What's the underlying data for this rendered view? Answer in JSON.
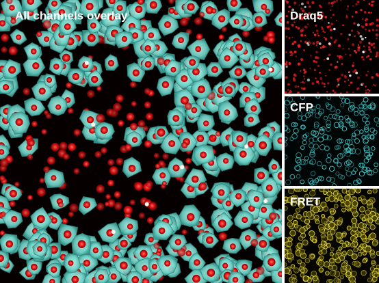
{
  "panels": [
    {
      "label": "All channels overlay"
    },
    {
      "label": "Draq5"
    },
    {
      "label": "CFP"
    },
    {
      "label": "FRET"
    }
  ]
}
